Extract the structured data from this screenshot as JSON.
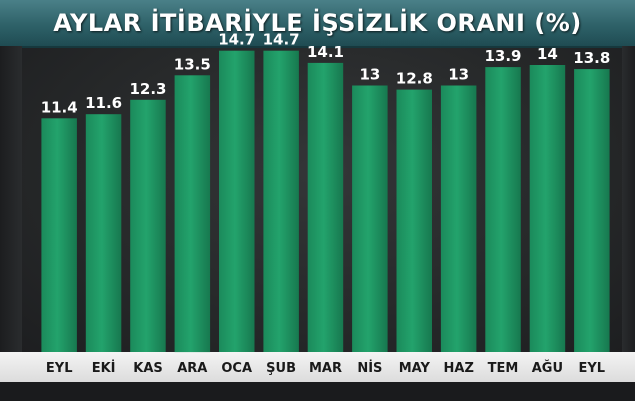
{
  "header": {
    "title": "AYLAR İTİBARİYLE İŞSİZLİK ORANI (%)"
  },
  "colors": {
    "bar": "#1f9a66",
    "bar_dark": "#17784f",
    "header": "#2e6168",
    "background": "#262829",
    "axis_strip": "#e8e8e8"
  },
  "chart_data": {
    "type": "bar",
    "title": "AYLAR İTİBARİYLE İŞSİZLİK ORANI (%)",
    "xlabel": "",
    "ylabel": "",
    "categories": [
      "EYL",
      "EKİ",
      "KAS",
      "ARA",
      "OCA",
      "ŞUB",
      "MAR",
      "NİS",
      "MAY",
      "HAZ",
      "TEM",
      "AĞU",
      "EYL"
    ],
    "values": [
      11.4,
      11.6,
      12.3,
      13.5,
      14.7,
      14.7,
      14.1,
      13,
      12.8,
      13,
      13.9,
      14,
      13.8
    ],
    "value_labels": [
      "11.4",
      "11.6",
      "12.3",
      "13.5",
      "14.7",
      "14.7",
      "14.1",
      "13",
      "12.8",
      "13",
      "13.9",
      "14",
      "13.8"
    ],
    "ylim": [
      0,
      16
    ],
    "grid": false,
    "legend": "none"
  }
}
